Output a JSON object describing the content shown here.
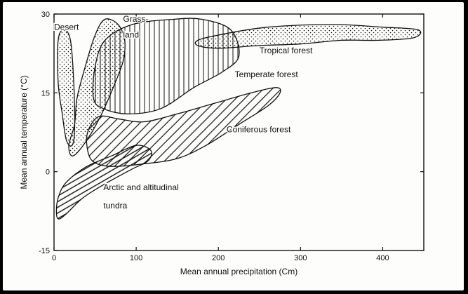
{
  "chart_data": {
    "type": "area",
    "xlabel": "Mean annual precipitation (Cm)",
    "ylabel": "Mean annual temperature (°C)",
    "xlim": [
      0,
      450
    ],
    "ylim": [
      -15,
      30
    ],
    "x_ticks": [
      "0",
      "100",
      "200",
      "300",
      "400"
    ],
    "y_ticks": [
      "30",
      "15",
      "0",
      "-15"
    ],
    "grid": false,
    "regions": [
      {
        "name": "Desert",
        "fill": "dots",
        "outline": [
          [
            10,
            11
          ],
          [
            5,
            17
          ],
          [
            5,
            25
          ],
          [
            12,
            27
          ],
          [
            20,
            25
          ],
          [
            24,
            17
          ],
          [
            25,
            8
          ],
          [
            22,
            5
          ],
          [
            15,
            6
          ]
        ]
      },
      {
        "name": "Grass-land",
        "fill": "dots",
        "outline": [
          [
            25,
            9
          ],
          [
            18,
            5
          ],
          [
            23,
            3
          ],
          [
            40,
            6
          ],
          [
            58,
            11
          ],
          [
            72,
            16
          ],
          [
            84,
            21
          ],
          [
            86,
            25
          ],
          [
            78,
            28
          ],
          [
            62,
            29
          ],
          [
            50,
            26
          ],
          [
            38,
            20
          ],
          [
            28,
            14
          ]
        ]
      },
      {
        "name": "Temperate forest",
        "fill": "vertical-lines",
        "outline": [
          [
            48,
            14
          ],
          [
            50,
            20
          ],
          [
            62,
            25
          ],
          [
            95,
            28
          ],
          [
            145,
            29
          ],
          [
            180,
            29
          ],
          [
            215,
            27
          ],
          [
            225,
            22
          ],
          [
            205,
            19
          ],
          [
            170,
            16
          ],
          [
            130,
            12
          ],
          [
            90,
            11
          ],
          [
            60,
            12
          ]
        ]
      },
      {
        "name": "Tropical forest",
        "fill": "dots",
        "outline": [
          [
            175,
            25
          ],
          [
            200,
            26
          ],
          [
            260,
            27.5
          ],
          [
            340,
            28
          ],
          [
            400,
            27.5
          ],
          [
            443,
            27
          ],
          [
            438,
            25.5
          ],
          [
            395,
            25
          ],
          [
            350,
            25
          ],
          [
            300,
            24.3
          ],
          [
            250,
            24
          ],
          [
            200,
            23.5
          ],
          [
            175,
            24
          ]
        ]
      },
      {
        "name": "Coniferous forest",
        "fill": "diagonal-lines",
        "outline": [
          [
            42,
            8
          ],
          [
            40,
            5
          ],
          [
            47,
            2
          ],
          [
            70,
            1
          ],
          [
            110,
            1.5
          ],
          [
            150,
            2.5
          ],
          [
            185,
            5
          ],
          [
            225,
            9
          ],
          [
            260,
            12.5
          ],
          [
            275,
            15
          ],
          [
            270,
            16
          ],
          [
            240,
            15
          ],
          [
            195,
            13
          ],
          [
            150,
            11
          ],
          [
            110,
            9.5
          ],
          [
            80,
            10
          ],
          [
            55,
            10.5
          ]
        ]
      },
      {
        "name": "Arctic and altitudinal tundra",
        "fill": "horizontal-lines",
        "outline": [
          [
            3,
            -8
          ],
          [
            5,
            -5
          ],
          [
            15,
            -2
          ],
          [
            40,
            1
          ],
          [
            70,
            3
          ],
          [
            100,
            5
          ],
          [
            118,
            4
          ],
          [
            114,
            2
          ],
          [
            95,
            0.5
          ],
          [
            60,
            -2.5
          ],
          [
            35,
            -5
          ],
          [
            15,
            -8
          ],
          [
            6,
            -9
          ]
        ]
      }
    ],
    "labels": [
      {
        "text": "Desert",
        "at": [
          0,
          27
        ]
      },
      {
        "text": "Grass-",
        "at": [
          84,
          28.5
        ]
      },
      {
        "text": "land",
        "at": [
          84,
          25.5
        ]
      },
      {
        "text": "Tropical forest",
        "at": [
          250,
          22.5
        ]
      },
      {
        "text": "Temperate forest",
        "at": [
          220,
          18
        ]
      },
      {
        "text": "Coniferous forest",
        "at": [
          210,
          7.5
        ]
      },
      {
        "text": "Arctic and altitudinal",
        "at": [
          60,
          -3.5
        ]
      },
      {
        "text": "tundra",
        "at": [
          60,
          -7
        ]
      }
    ]
  },
  "colors": {
    "ink": "#111111",
    "paper": "#fdfdfb",
    "frame": "#000000"
  }
}
